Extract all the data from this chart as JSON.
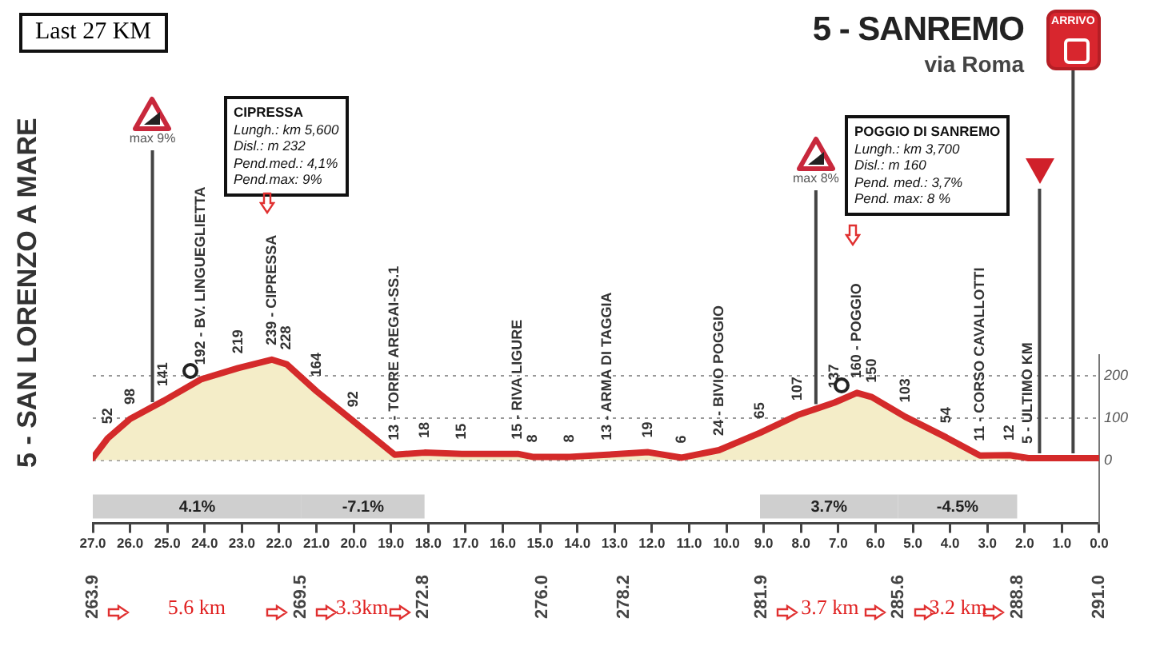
{
  "chart_data": {
    "type": "area",
    "title": "5 - SANREMO",
    "subtitle": "via Roma",
    "x": [
      27,
      26.6,
      26,
      25.1,
      24.1,
      23.1,
      22.2,
      21.8,
      21,
      20,
      18.9,
      18.1,
      17.1,
      15.6,
      15.2,
      14.2,
      13.2,
      12.1,
      11.2,
      10.2,
      9.1,
      8.1,
      7.1,
      6.5,
      6.1,
      5.2,
      4.1,
      3.2,
      2.4,
      1.9,
      0
    ],
    "series": [
      {
        "color": "#d42a2a",
        "values": [
          5,
          52,
          98,
          141,
          192,
          219,
          239,
          228,
          164,
          92,
          13,
          18,
          15,
          15,
          8,
          8,
          13,
          19,
          6,
          24,
          65,
          107,
          137,
          160,
          150,
          103,
          54,
          11,
          12,
          5,
          5
        ],
        "value_labels": [
          null,
          "52",
          "98",
          "141",
          null,
          "219",
          null,
          "228",
          "164",
          "92",
          null,
          "18",
          "15",
          null,
          "8",
          "8",
          null,
          "19",
          "6",
          null,
          "65",
          "107",
          "137",
          null,
          "150",
          "103",
          "54",
          null,
          "12",
          null,
          null
        ]
      }
    ],
    "xlim": [
      27,
      0
    ],
    "xticks": [
      {
        "value": 27,
        "label": "27.0"
      },
      {
        "value": 26,
        "label": "26.0"
      },
      {
        "value": 25,
        "label": "25.0"
      },
      {
        "value": 24,
        "label": "24.0"
      },
      {
        "value": 23,
        "label": "23.0"
      },
      {
        "value": 22,
        "label": "22.0"
      },
      {
        "value": 21,
        "label": "21.0"
      },
      {
        "value": 20,
        "label": "20.0"
      },
      {
        "value": 19,
        "label": "19.0"
      },
      {
        "value": 18,
        "label": "18.0"
      },
      {
        "value": 17,
        "label": "17.0"
      },
      {
        "value": 16,
        "label": "16.0"
      },
      {
        "value": 15,
        "label": "15.0"
      },
      {
        "value": 14,
        "label": "14.0"
      },
      {
        "value": 13,
        "label": "13.0"
      },
      {
        "value": 12,
        "label": "12.0"
      },
      {
        "value": 11,
        "label": "11.0"
      },
      {
        "value": 10,
        "label": "10.0"
      },
      {
        "value": 9,
        "label": "9.0"
      },
      {
        "value": 8,
        "label": "8.0"
      },
      {
        "value": 7,
        "label": "7.0"
      },
      {
        "value": 6,
        "label": "6.0"
      },
      {
        "value": 5,
        "label": "5.0"
      },
      {
        "value": 4,
        "label": "4.0"
      },
      {
        "value": 3,
        "label": "3.0"
      },
      {
        "value": 2,
        "label": "2.0"
      },
      {
        "value": 1,
        "label": "1.0"
      },
      {
        "value": 0,
        "label": "0.0"
      }
    ],
    "x2lim": [
      263.9,
      291
    ],
    "x2ticks": [
      263.9,
      269.5,
      272.8,
      {
        "value": 276,
        "label": "276.0"
      },
      278.2,
      281.9,
      285.6,
      288.8,
      {
        "value": 291,
        "label": "291.0"
      }
    ],
    "ylim": [
      -150,
      250
    ],
    "yticks": [
      0,
      100,
      200
    ],
    "grid": "y",
    "legend": false,
    "bands": [
      {
        "axis": "x",
        "from": 27,
        "to": 21.4,
        "label": "4.1%"
      },
      {
        "axis": "x",
        "from": 21.4,
        "to": 18.1,
        "label": "-7.1%"
      },
      {
        "axis": "x",
        "from": 9.1,
        "to": 5.4,
        "label": "3.7%"
      },
      {
        "axis": "x",
        "from": 5.4,
        "to": 2.2,
        "label": "-4.5%"
      }
    ],
    "ref_lines": [
      {
        "axis": "x",
        "value": 25.4,
        "label": "max 9%"
      },
      {
        "axis": "x",
        "value": 7.6,
        "label": "max 8%"
      },
      {
        "axis": "x",
        "value": 1.6
      },
      {
        "axis": "x",
        "value": 0.7,
        "label": "ARRIVO"
      }
    ],
    "annotations": [
      "Last 27 KM",
      "CIPRESSA\nLungh.: km 5,600\nDisl.: m 232\nPend.med.: 4,1%\nPend.max: 9%",
      "POGGIO DI SANREMO\nLungh.: km 3,700\nDisl.: m 160\nPend. med.: 3,7%\nPend. max: 8 %",
      "5.6 km",
      "3.3km",
      "3.7 km",
      "3.2 km",
      {
        "text": "5 - SAN LORENZO A MARE",
        "x": 27,
        "y": 5
      },
      {
        "text": "192 - BV. LINGUEGLIETTA",
        "x": 24.1,
        "y": 192
      },
      {
        "text": "239 - CIPRESSA",
        "x": 22.2,
        "y": 239
      },
      {
        "text": "13 - TORRE AREGAI-SS.1",
        "x": 18.9,
        "y": 13
      },
      {
        "text": "15 - RIVA LIGURE",
        "x": 15.6,
        "y": 15
      },
      {
        "text": "13 - ARMA DI TAGGIA",
        "x": 13.2,
        "y": 13
      },
      {
        "text": "24 - BIVIO POGGIO",
        "x": 10.2,
        "y": 24
      },
      {
        "text": "160 - POGGIO",
        "x": 6.5,
        "y": 160
      },
      {
        "text": "11 - CORSO CAVALLOTTI",
        "x": 3.2,
        "y": 11
      },
      {
        "text": "5 - ULTIMO KM",
        "x": 1.9,
        "y": 5
      }
    ]
  }
}
